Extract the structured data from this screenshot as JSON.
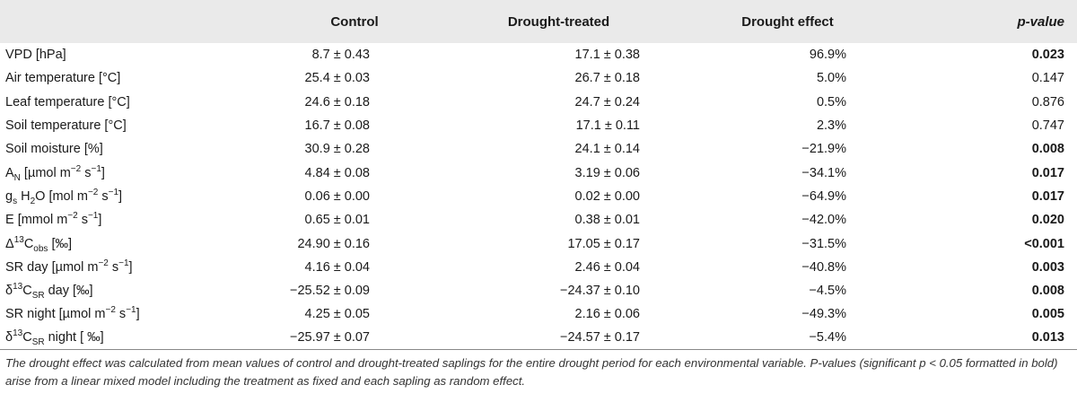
{
  "table": {
    "headers": {
      "variable": "",
      "control": "Control",
      "drought": "Drought-treated",
      "effect": "Drought effect",
      "pvalue": "p-value"
    },
    "rows": [
      {
        "variable": "VPD [hPa]",
        "control": "8.7 ± 0.43",
        "drought": "17.1 ± 0.38",
        "effect": "96.9%",
        "pvalue": "0.023",
        "significant": true
      },
      {
        "variable": "Air temperature [°C]",
        "control": "25.4 ± 0.03",
        "drought": "26.7 ± 0.18",
        "effect": "5.0%",
        "pvalue": "0.147",
        "significant": false
      },
      {
        "variable": "Leaf temperature [°C]",
        "control": "24.6 ± 0.18",
        "drought": "24.7 ± 0.24",
        "effect": "0.5%",
        "pvalue": "0.876",
        "significant": false
      },
      {
        "variable": "Soil temperature [°C]",
        "control": "16.7 ± 0.08",
        "drought": "17.1 ± 0.11",
        "effect": "2.3%",
        "pvalue": "0.747",
        "significant": false
      },
      {
        "variable": "Soil moisture [%]",
        "control": "30.9 ± 0.28",
        "drought": "24.1 ± 0.14",
        "effect": "−21.9%",
        "pvalue": "0.008",
        "significant": true
      },
      {
        "variable": "A<sub>N</sub> [µmol m<sup>−2</sup> s<sup>−1</sup>]",
        "control": "4.84 ± 0.08",
        "drought": "3.19 ± 0.06",
        "effect": "−34.1%",
        "pvalue": "0.017",
        "significant": true
      },
      {
        "variable": "g<sub>s</sub> H<sub>2</sub>O [mol m<sup>−2</sup> s<sup>−1</sup>]",
        "control": "0.06 ± 0.00",
        "drought": "0.02 ± 0.00",
        "effect": "−64.9%",
        "pvalue": "0.017",
        "significant": true
      },
      {
        "variable": "E [mmol m<sup>−2</sup> s<sup>−1</sup>]",
        "control": "0.65 ± 0.01",
        "drought": "0.38 ± 0.01",
        "effect": "−42.0%",
        "pvalue": "0.020",
        "significant": true
      },
      {
        "variable": "Δ<sup>13</sup>C<sub>obs</sub> [‰]",
        "control": "24.90 ± 0.16",
        "drought": "17.05 ± 0.17",
        "effect": "−31.5%",
        "pvalue": "<0.001",
        "significant": true
      },
      {
        "variable": "SR day [µmol m<sup>−2</sup> s<sup>−1</sup>]",
        "control": "4.16 ± 0.04",
        "drought": "2.46 ± 0.04",
        "effect": "−40.8%",
        "pvalue": "0.003",
        "significant": true
      },
      {
        "variable": "δ<sup>13</sup>C<sub>SR</sub> day [‰]",
        "control": "−25.52 ± 0.09",
        "drought": "−24.37 ± 0.10",
        "effect": "−4.5%",
        "pvalue": "0.008",
        "significant": true
      },
      {
        "variable": "SR night [µmol m<sup>−2</sup> s<sup>−1</sup>]",
        "control": "4.25 ± 0.05",
        "drought": "2.16 ± 0.06",
        "effect": "−49.3%",
        "pvalue": "0.005",
        "significant": true
      },
      {
        "variable": "δ<sup>13</sup>C<sub>SR</sub> night [ ‰]",
        "control": "−25.97 ± 0.07",
        "drought": "−24.57 ± 0.17",
        "effect": "−5.4%",
        "pvalue": "0.013",
        "significant": true
      }
    ]
  },
  "footnote": "The drought effect was calculated from mean values of control and drought-treated saplings for the entire drought period for each environmental variable. P-values (significant p < 0.05 formatted in bold) arise from a linear mixed model including the treatment as fixed and each sapling as random effect."
}
